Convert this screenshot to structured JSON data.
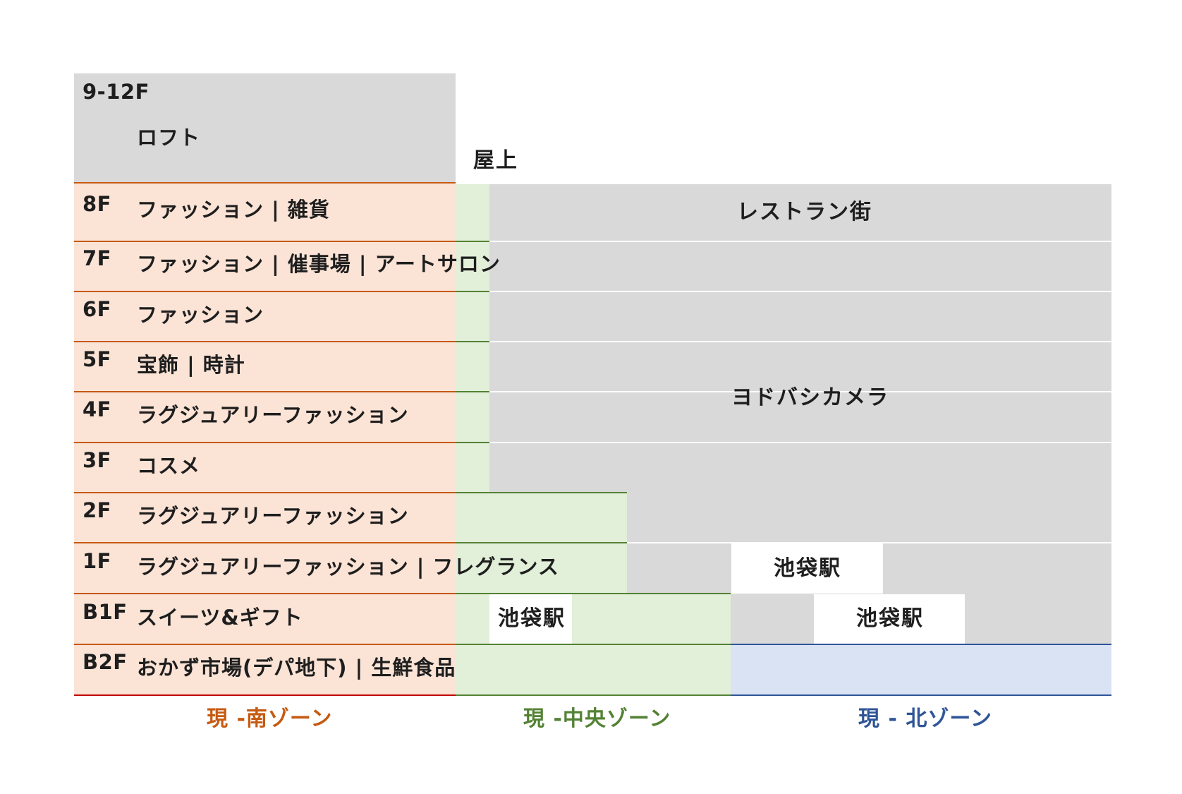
{
  "rooftop": "屋上",
  "floors": [
    {
      "floor": "9-12F",
      "desc": "ロフト"
    },
    {
      "floor": "8F",
      "desc": "ファッション | 雑貨"
    },
    {
      "floor": "7F",
      "desc": "ファッション | 催事場 | アートサロン"
    },
    {
      "floor": "6F",
      "desc": "ファッション"
    },
    {
      "floor": "5F",
      "desc": "宝飾 | 時計"
    },
    {
      "floor": "4F",
      "desc": "ラグジュアリーファッション"
    },
    {
      "floor": "3F",
      "desc": "コスメ"
    },
    {
      "floor": "2F",
      "desc": "ラグジュアリーファッション"
    },
    {
      "floor": "1F",
      "desc": "ラグジュアリーファッション | フレグランス"
    },
    {
      "floor": "B1F",
      "desc": "スイーツ&ギフト"
    },
    {
      "floor": "B2F",
      "desc": "おかず市場(デパ地下) | 生鮮食品"
    }
  ],
  "blocks": {
    "restaurant": "レストラン街",
    "yodobashi": "ヨドバシカメラ",
    "station_1f": "池袋駅",
    "station_b1f_center": "池袋駅",
    "station_b1f_north": "池袋駅"
  },
  "zones": [
    {
      "label": "現 -南ゾーン",
      "color": "#c55a11"
    },
    {
      "label": "現 -中央ゾーン",
      "color": "#548235"
    },
    {
      "label": "現 - 北ゾーン",
      "color": "#2f5597"
    }
  ],
  "colors": {
    "south_fill": "#fbe3d6",
    "center_fill": "#e2efd9",
    "north_fill": "#dae3f3",
    "other_fill": "#d9d9d9"
  }
}
